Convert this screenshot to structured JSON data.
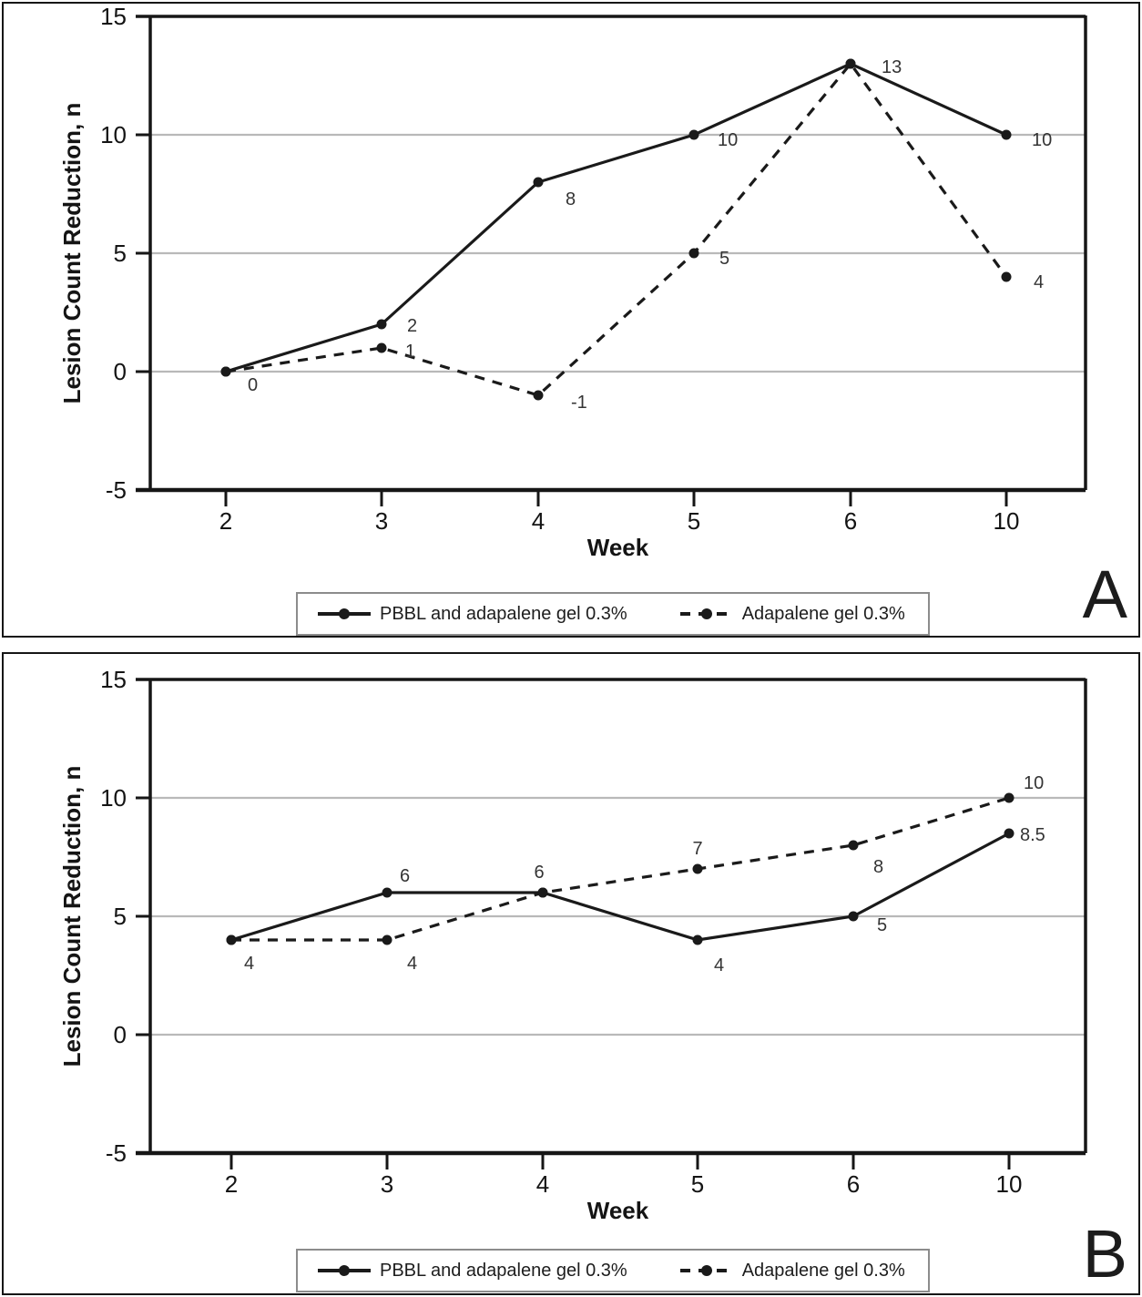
{
  "chart_data": [
    {
      "panel": "A",
      "type": "line",
      "title": "",
      "xlabel": "Week",
      "ylabel": "Lesion Count Reduction, n",
      "ylim": [
        -5,
        15
      ],
      "yticks": [
        15,
        10,
        5,
        0,
        -5
      ],
      "gridlines": "horizontal-on",
      "legend_position": "bottom",
      "categories": [
        "2",
        "3",
        "4",
        "5",
        "6",
        "10"
      ],
      "series": [
        {
          "name": "PBBL and adapalene gel 0.3%",
          "style": "solid",
          "values": [
            0,
            2,
            8,
            10,
            13,
            10
          ],
          "point_labels": [
            {
              "text": "0",
              "dx": 24,
              "dy": 21
            },
            {
              "text": "2",
              "dx": 28,
              "dy": 8
            },
            {
              "text": "8",
              "dx": 30,
              "dy": 25
            },
            {
              "text": "10",
              "dx": 26,
              "dy": 12
            },
            {
              "text": "13",
              "dx": 34,
              "dy": 10
            },
            {
              "text": "10",
              "dx": 28,
              "dy": 12
            }
          ]
        },
        {
          "name": "Adapalene gel 0.3%",
          "style": "dashed",
          "values": [
            0,
            1,
            -1,
            5,
            13,
            4
          ],
          "point_labels": [
            null,
            {
              "text": "1",
              "dx": 26,
              "dy": 10
            },
            {
              "text": "-1",
              "dx": 36,
              "dy": 14
            },
            {
              "text": "5",
              "dx": 28,
              "dy": 12
            },
            null,
            {
              "text": "4",
              "dx": 30,
              "dy": 12
            }
          ]
        }
      ]
    },
    {
      "panel": "B",
      "type": "line",
      "title": "",
      "xlabel": "Week",
      "ylabel": "Lesion Count Reduction, n",
      "ylim": [
        -5,
        15
      ],
      "yticks": [
        15,
        10,
        5,
        0,
        -5
      ],
      "gridlines": "horizontal-on",
      "legend_position": "bottom",
      "categories": [
        "2",
        "3",
        "4",
        "5",
        "6",
        "10"
      ],
      "series": [
        {
          "name": "PBBL and adapalene gel 0.3%",
          "style": "solid",
          "values": [
            4,
            6,
            6,
            4,
            5,
            8.5
          ],
          "point_labels": [
            {
              "text": "4",
              "dx": 14,
              "dy": 32
            },
            {
              "text": "6",
              "dx": 14,
              "dy": -12
            },
            {
              "text": "6",
              "dx": -4,
              "dy": -16,
              "anchor": "middle"
            },
            {
              "text": "4",
              "dx": 18,
              "dy": 34
            },
            {
              "text": "5",
              "dx": 26,
              "dy": 16
            },
            {
              "text": "8.5",
              "dx": 12,
              "dy": 8
            }
          ]
        },
        {
          "name": "Adapalene gel 0.3%",
          "style": "dashed",
          "values": [
            4,
            4,
            6,
            7,
            8,
            10
          ],
          "point_labels": [
            null,
            {
              "text": "4",
              "dx": 22,
              "dy": 32
            },
            null,
            {
              "text": "7",
              "dx": 0,
              "dy": -16,
              "anchor": "middle"
            },
            {
              "text": "8",
              "dx": 22,
              "dy": 30
            },
            {
              "text": "10",
              "dx": 16,
              "dy": -10
            }
          ]
        }
      ]
    }
  ],
  "colors": {
    "line": "#1a1a1a",
    "axis": "#161616",
    "gridline": "#b9b9b9",
    "point_label": "#343434"
  }
}
